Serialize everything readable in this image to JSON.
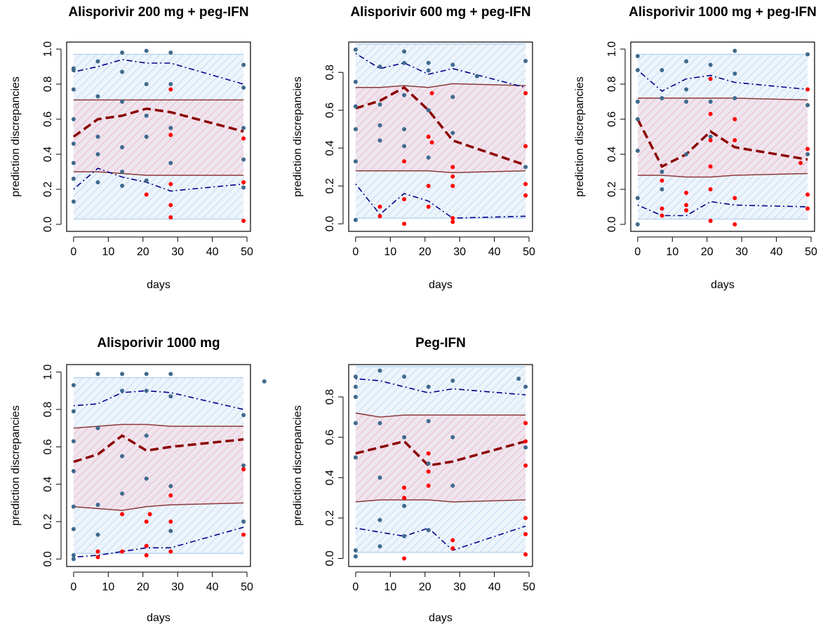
{
  "chart_data": [
    {
      "type": "vpc",
      "title": "Alisporivir 200 mg + peg-IFN",
      "x_label": "days",
      "y_label": "prediction discrepancies",
      "xlim": [
        -2,
        51
      ],
      "ylim": [
        -0.04,
        1.04
      ],
      "xticks": [
        0,
        10,
        20,
        30,
        40,
        50
      ],
      "yticks": [
        {
          "value": 0,
          "label": "0.0"
        },
        0.2,
        0.4,
        0.6,
        0.8,
        {
          "value": 1,
          "label": "1.0"
        }
      ],
      "x": [
        0,
        7,
        14,
        21,
        28,
        49
      ],
      "bands": [
        {
          "color": "#b9d5f0",
          "edge": "#b9d5f0",
          "lower": [
            0.03,
            0.03,
            0.03,
            0.03,
            0.03,
            0.03
          ],
          "upper": [
            0.97,
            0.97,
            0.97,
            0.97,
            0.97,
            0.97
          ]
        },
        {
          "color": "#f5b7c6",
          "edge": "#8b3a3a",
          "lower": [
            0.3,
            0.3,
            0.29,
            0.28,
            0.28,
            0.28
          ],
          "upper": [
            0.71,
            0.71,
            0.71,
            0.71,
            0.71,
            0.71
          ]
        }
      ],
      "lines": [
        {
          "color": "#00008b",
          "dash": "dotdash",
          "width": 1.6,
          "values": [
            0.87,
            0.9,
            0.94,
            0.92,
            0.92,
            0.8
          ]
        },
        {
          "color": "#00008b",
          "dash": "dotdash",
          "width": 1.6,
          "values": [
            0.2,
            0.32,
            0.27,
            0.24,
            0.19,
            0.23
          ]
        },
        {
          "color": "#8b0000",
          "dash": "dashed",
          "width": 3.5,
          "values": [
            0.5,
            0.6,
            0.62,
            0.66,
            0.64,
            0.53
          ]
        }
      ],
      "points": [
        {
          "color": "#3f6a8d",
          "x": [
            0,
            0,
            0,
            0,
            0,
            0,
            0,
            0,
            7,
            7,
            7,
            7,
            7,
            14,
            14,
            14,
            14,
            14,
            14,
            21,
            21,
            21,
            21,
            21,
            28,
            28,
            28,
            28,
            49,
            49,
            49,
            49,
            49
          ],
          "y": [
            0.13,
            0.26,
            0.35,
            0.46,
            0.6,
            0.77,
            0.88,
            0.89,
            0.24,
            0.4,
            0.5,
            0.73,
            0.93,
            0.22,
            0.3,
            0.44,
            0.7,
            0.87,
            0.98,
            0.25,
            0.5,
            0.62,
            0.8,
            0.99,
            0.35,
            0.55,
            0.8,
            0.98,
            0.21,
            0.37,
            0.55,
            0.78,
            0.91
          ]
        },
        {
          "color": "#ff0000",
          "x": [
            21,
            28,
            28,
            28,
            28,
            28,
            49,
            49,
            49
          ],
          "y": [
            0.17,
            0.77,
            0.51,
            0.23,
            0.11,
            0.04,
            0.02,
            0.24,
            0.49
          ]
        }
      ]
    },
    {
      "type": "vpc",
      "title": "Alisporivir 600 mg + peg-IFN",
      "x_label": "days",
      "y_label": "prediction discrepancies",
      "xlim": [
        -2,
        51
      ],
      "ylim": [
        -0.04,
        0.96
      ],
      "xticks": [
        0,
        10,
        20,
        30,
        40,
        50
      ],
      "yticks": [
        {
          "value": 0,
          "label": "0.0"
        },
        0.2,
        0.4,
        0.6,
        0.8
      ],
      "x": [
        0,
        7,
        14,
        21,
        28,
        49
      ],
      "bands": [
        {
          "color": "#b9d5f0",
          "edge": "#b9d5f0",
          "lower": [
            0.03,
            0.03,
            0.03,
            0.03,
            0.03,
            0.03
          ],
          "upper": [
            0.95,
            0.95,
            0.95,
            0.95,
            0.95,
            0.95
          ]
        },
        {
          "color": "#f5b7c6",
          "edge": "#8b3a3a",
          "lower": [
            0.28,
            0.28,
            0.28,
            0.28,
            0.27,
            0.28
          ],
          "upper": [
            0.72,
            0.72,
            0.73,
            0.72,
            0.74,
            0.73
          ]
        }
      ],
      "lines": [
        {
          "color": "#00008b",
          "dash": "dotdash",
          "width": 1.6,
          "values": [
            0.9,
            0.82,
            0.85,
            0.79,
            0.82,
            0.72
          ]
        },
        {
          "color": "#00008b",
          "dash": "dotdash",
          "width": 1.6,
          "values": [
            0.21,
            0.05,
            0.16,
            0.12,
            0.03,
            0.04
          ]
        },
        {
          "color": "#8b0000",
          "dash": "dashed",
          "width": 3.5,
          "values": [
            0.61,
            0.65,
            0.72,
            0.6,
            0.44,
            0.31
          ]
        }
      ],
      "points": [
        {
          "color": "#3f6a8d",
          "x": [
            0,
            0,
            0,
            0,
            0,
            0,
            7,
            7,
            7,
            7,
            14,
            14,
            14,
            14,
            14,
            21,
            21,
            21,
            21,
            28,
            28,
            28,
            35,
            49,
            49
          ],
          "y": [
            0.02,
            0.33,
            0.5,
            0.62,
            0.75,
            0.92,
            0.44,
            0.52,
            0.63,
            0.83,
            0.41,
            0.5,
            0.68,
            0.85,
            0.91,
            0.35,
            0.6,
            0.81,
            0.85,
            0.48,
            0.67,
            0.84,
            0.78,
            0.3,
            0.86
          ]
        },
        {
          "color": "#ff0000",
          "x": [
            7,
            7,
            14,
            14,
            14,
            21,
            21,
            21,
            22,
            22,
            28,
            28,
            28,
            28,
            28,
            49,
            49,
            49,
            49
          ],
          "y": [
            0.04,
            0.09,
            0,
            0.13,
            0.33,
            0.09,
            0.2,
            0.46,
            0.43,
            0.69,
            0.01,
            0.03,
            0.2,
            0.25,
            0.3,
            0.15,
            0.21,
            0.41,
            0.69
          ]
        }
      ]
    },
    {
      "type": "vpc",
      "title": "Alisporivir 1000 mg + peg-IFN",
      "x_label": "days",
      "y_label": "prediction discrepancies",
      "xlim": [
        -2,
        51
      ],
      "ylim": [
        -0.04,
        1.04
      ],
      "xticks": [
        0,
        10,
        20,
        30,
        40,
        50
      ],
      "yticks": [
        {
          "value": 0,
          "label": "0.0"
        },
        0.2,
        0.4,
        0.6,
        0.8,
        {
          "value": 1,
          "label": "1.0"
        }
      ],
      "x": [
        0,
        7,
        14,
        21,
        28,
        49
      ],
      "bands": [
        {
          "color": "#b9d5f0",
          "edge": "#b9d5f0",
          "lower": [
            0.03,
            0.03,
            0.03,
            0.03,
            0.03,
            0.03
          ],
          "upper": [
            0.97,
            0.97,
            0.97,
            0.97,
            0.97,
            0.97
          ]
        },
        {
          "color": "#f5b7c6",
          "edge": "#8b3a3a",
          "lower": [
            0.28,
            0.28,
            0.27,
            0.27,
            0.28,
            0.29
          ],
          "upper": [
            0.72,
            0.72,
            0.72,
            0.72,
            0.72,
            0.71
          ]
        }
      ],
      "lines": [
        {
          "color": "#00008b",
          "dash": "dotdash",
          "width": 1.6,
          "values": [
            0.88,
            0.76,
            0.83,
            0.85,
            0.81,
            0.77
          ]
        },
        {
          "color": "#00008b",
          "dash": "dotdash",
          "width": 1.6,
          "values": [
            0.11,
            0.05,
            0.05,
            0.13,
            0.11,
            0.1
          ]
        },
        {
          "color": "#8b0000",
          "dash": "dashed",
          "width": 3.5,
          "values": [
            0.6,
            0.33,
            0.4,
            0.53,
            0.44,
            0.37
          ]
        }
      ],
      "points": [
        {
          "color": "#3f6a8d",
          "x": [
            0,
            0,
            0,
            0,
            0,
            0,
            0,
            7,
            7,
            7,
            7,
            14,
            14,
            14,
            14,
            21,
            21,
            21,
            28,
            28,
            28,
            49,
            49,
            49
          ],
          "y": [
            0,
            0.15,
            0.42,
            0.6,
            0.7,
            0.88,
            0.96,
            0.2,
            0.3,
            0.72,
            0.88,
            0.4,
            0.7,
            0.77,
            0.93,
            0.5,
            0.7,
            0.91,
            0.72,
            0.86,
            0.99,
            0.4,
            0.68,
            0.97
          ]
        },
        {
          "color": "#ff0000",
          "x": [
            7,
            7,
            7,
            14,
            14,
            14,
            21,
            21,
            21,
            21,
            21,
            21,
            28,
            28,
            28,
            28,
            49,
            49,
            49,
            49,
            47
          ],
          "y": [
            0.05,
            0.09,
            0.25,
            0.08,
            0.11,
            0.18,
            0.02,
            0.2,
            0.33,
            0.48,
            0.63,
            0.83,
            0,
            0.15,
            0.48,
            0.6,
            0.09,
            0.17,
            0.43,
            0.77,
            0.35
          ]
        }
      ]
    },
    {
      "type": "vpc",
      "title": "Alisporivir 1000 mg",
      "x_label": "days",
      "y_label": "prediction discrepancies",
      "xlim": [
        -2,
        51
      ],
      "ylim": [
        -0.04,
        1.04
      ],
      "xticks": [
        0,
        10,
        20,
        30,
        40,
        50
      ],
      "yticks": [
        {
          "value": 0,
          "label": "0.0"
        },
        0.2,
        0.4,
        0.6,
        0.8,
        {
          "value": 1,
          "label": "1.0"
        }
      ],
      "x": [
        0,
        7,
        14,
        21,
        28,
        49
      ],
      "bands": [
        {
          "color": "#b9d5f0",
          "edge": "#b9d5f0",
          "lower": [
            0.03,
            0.03,
            0.03,
            0.03,
            0.03,
            0.03
          ],
          "upper": [
            0.97,
            0.97,
            0.97,
            0.97,
            0.97,
            0.97
          ]
        },
        {
          "color": "#f5b7c6",
          "edge": "#8b3a3a",
          "lower": [
            0.28,
            0.27,
            0.26,
            0.28,
            0.29,
            0.3
          ],
          "upper": [
            0.7,
            0.71,
            0.72,
            0.72,
            0.71,
            0.71
          ]
        }
      ],
      "lines": [
        {
          "color": "#00008b",
          "dash": "dotdash",
          "width": 1.6,
          "values": [
            0.82,
            0.83,
            0.89,
            0.9,
            0.89,
            0.8
          ]
        },
        {
          "color": "#00008b",
          "dash": "dotdash",
          "width": 1.6,
          "values": [
            0.01,
            0.02,
            0.04,
            0.06,
            0.06,
            0.17
          ]
        },
        {
          "color": "#8b0000",
          "dash": "dashed",
          "width": 3.5,
          "values": [
            0.52,
            0.56,
            0.66,
            0.58,
            0.6,
            0.64
          ]
        }
      ],
      "points": [
        {
          "color": "#3f6a8d",
          "x": [
            0,
            0,
            0,
            0,
            0,
            0,
            0,
            0,
            7,
            7,
            7,
            7,
            14,
            14,
            14,
            14,
            21,
            21,
            21,
            21,
            28,
            28,
            28,
            28,
            49,
            49,
            49,
            55
          ],
          "y": [
            0,
            0.02,
            0.16,
            0.28,
            0.47,
            0.63,
            0.79,
            0.93,
            0.13,
            0.29,
            0.7,
            0.99,
            0.35,
            0.55,
            0.9,
            0.99,
            0.43,
            0.66,
            0.9,
            0.99,
            0.15,
            0.39,
            0.87,
            0.99,
            0.2,
            0.5,
            0.77,
            0.95
          ]
        },
        {
          "color": "#ff0000",
          "x": [
            7,
            7,
            14,
            14,
            21,
            21,
            21,
            22,
            28,
            28,
            28,
            49,
            49
          ],
          "y": [
            0.01,
            0.04,
            0.04,
            0.24,
            0.02,
            0.07,
            0.2,
            0.24,
            0.04,
            0.2,
            0.34,
            0.13,
            0.48
          ]
        }
      ]
    },
    {
      "type": "vpc",
      "title": "Peg-IFN",
      "x_label": "days",
      "y_label": "prediction discrepancies",
      "xlim": [
        -2,
        51
      ],
      "ylim": [
        -0.04,
        0.96
      ],
      "xticks": [
        0,
        10,
        20,
        30,
        40,
        50
      ],
      "yticks": [
        {
          "value": 0,
          "label": "0.0"
        },
        0.2,
        0.4,
        0.6,
        0.8
      ],
      "x": [
        0,
        7,
        14,
        21,
        28,
        49
      ],
      "bands": [
        {
          "color": "#b9d5f0",
          "edge": "#b9d5f0",
          "lower": [
            0.03,
            0.03,
            0.03,
            0.03,
            0.03,
            0.03
          ],
          "upper": [
            0.95,
            0.95,
            0.95,
            0.95,
            0.95,
            0.95
          ]
        },
        {
          "color": "#f5b7c6",
          "edge": "#8b3a3a",
          "lower": [
            0.28,
            0.29,
            0.29,
            0.29,
            0.28,
            0.29
          ],
          "upper": [
            0.72,
            0.7,
            0.71,
            0.71,
            0.71,
            0.71
          ]
        }
      ],
      "lines": [
        {
          "color": "#00008b",
          "dash": "dotdash",
          "width": 1.6,
          "values": [
            0.89,
            0.88,
            0.85,
            0.82,
            0.84,
            0.81
          ]
        },
        {
          "color": "#00008b",
          "dash": "dotdash",
          "width": 1.6,
          "values": [
            0.15,
            0.13,
            0.11,
            0.15,
            0.04,
            0.16
          ]
        },
        {
          "color": "#8b0000",
          "dash": "dashed",
          "width": 3.5,
          "values": [
            0.52,
            0.55,
            0.58,
            0.46,
            0.48,
            0.58
          ]
        }
      ],
      "points": [
        {
          "color": "#3f6a8d",
          "x": [
            0,
            0,
            0,
            0,
            0,
            0,
            0,
            7,
            7,
            7,
            7,
            7,
            14,
            14,
            14,
            14,
            21,
            21,
            21,
            21,
            28,
            28,
            28,
            47,
            49,
            49
          ],
          "y": [
            0.01,
            0.04,
            0.5,
            0.67,
            0.8,
            0.85,
            0.9,
            0.06,
            0.19,
            0.4,
            0.67,
            0.93,
            0.11,
            0.26,
            0.6,
            0.9,
            0.14,
            0.47,
            0.68,
            0.85,
            0.36,
            0.6,
            0.88,
            0.89,
            0.55,
            0.85
          ]
        },
        {
          "color": "#ff0000",
          "x": [
            14,
            14,
            14,
            21,
            21,
            21,
            28,
            28,
            49,
            49,
            49,
            49,
            49,
            49
          ],
          "y": [
            0,
            0.3,
            0.35,
            0.36,
            0.43,
            0.52,
            0.09,
            0.05,
            0.02,
            0.12,
            0.2,
            0.46,
            0.58,
            0.67
          ]
        }
      ]
    }
  ]
}
